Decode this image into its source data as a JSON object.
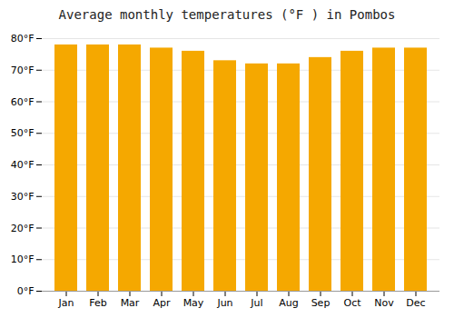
{
  "chart_data": {
    "type": "bar",
    "title": "Average monthly temperatures (°F ) in Pombos",
    "categories": [
      "Jan",
      "Feb",
      "Mar",
      "Apr",
      "May",
      "Jun",
      "Jul",
      "Aug",
      "Sep",
      "Oct",
      "Nov",
      "Dec"
    ],
    "values": [
      78,
      78,
      78,
      77,
      76,
      73,
      72,
      72,
      74,
      76,
      77,
      77
    ],
    "color": "#F5A800",
    "ylim": [
      0,
      80
    ],
    "yticks": [
      {
        "value": 0,
        "label": "0°F"
      },
      {
        "value": 10,
        "label": "10°F"
      },
      {
        "value": 20,
        "label": "20°F"
      },
      {
        "value": 30,
        "label": "30°F"
      },
      {
        "value": 40,
        "label": "40°F"
      },
      {
        "value": 50,
        "label": "50°F"
      },
      {
        "value": 60,
        "label": "60°F"
      },
      {
        "value": 70,
        "label": "70°F"
      },
      {
        "value": 80,
        "label": "80°F"
      }
    ],
    "grid": true
  }
}
